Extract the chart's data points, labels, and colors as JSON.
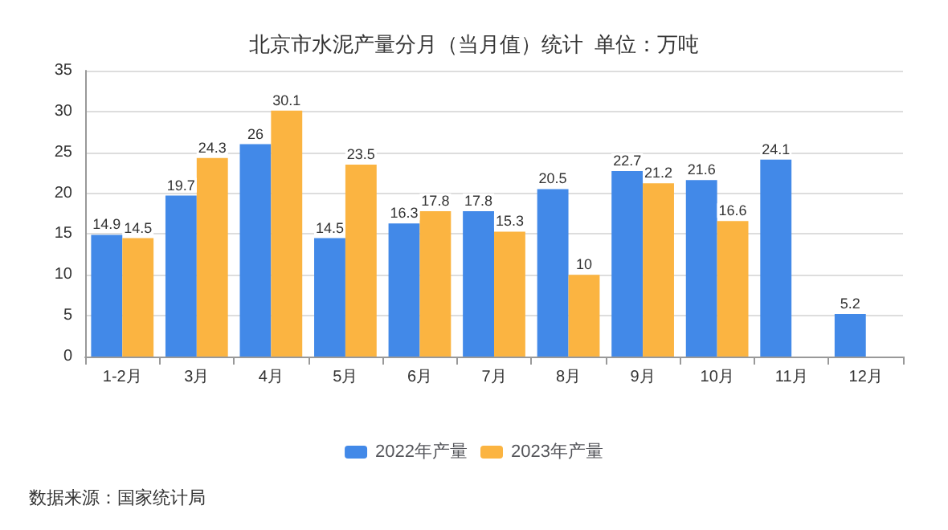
{
  "chart_data": {
    "type": "bar",
    "title": "北京市水泥产量分月（当月值）统计  单位：万吨",
    "categories": [
      "1-2月",
      "3月",
      "4月",
      "5月",
      "6月",
      "7月",
      "8月",
      "9月",
      "10月",
      "11月",
      "12月"
    ],
    "series": [
      {
        "name": "2022年产量",
        "color": "#4289e8",
        "values": [
          14.9,
          19.7,
          26,
          14.5,
          16.3,
          17.8,
          20.5,
          22.7,
          21.6,
          24.1,
          5.2
        ]
      },
      {
        "name": "2023年产量",
        "color": "#fbb441",
        "values": [
          14.5,
          24.3,
          30.1,
          23.5,
          17.8,
          15.3,
          10,
          21.2,
          16.6,
          null,
          null
        ]
      }
    ],
    "ylim": [
      0,
      35
    ],
    "yticks": [
      0,
      5,
      10,
      15,
      20,
      25,
      30,
      35
    ],
    "grid": "y",
    "legend": "bottom",
    "data_labels": true,
    "annotations": [
      "数据来源：国家统计局"
    ]
  }
}
